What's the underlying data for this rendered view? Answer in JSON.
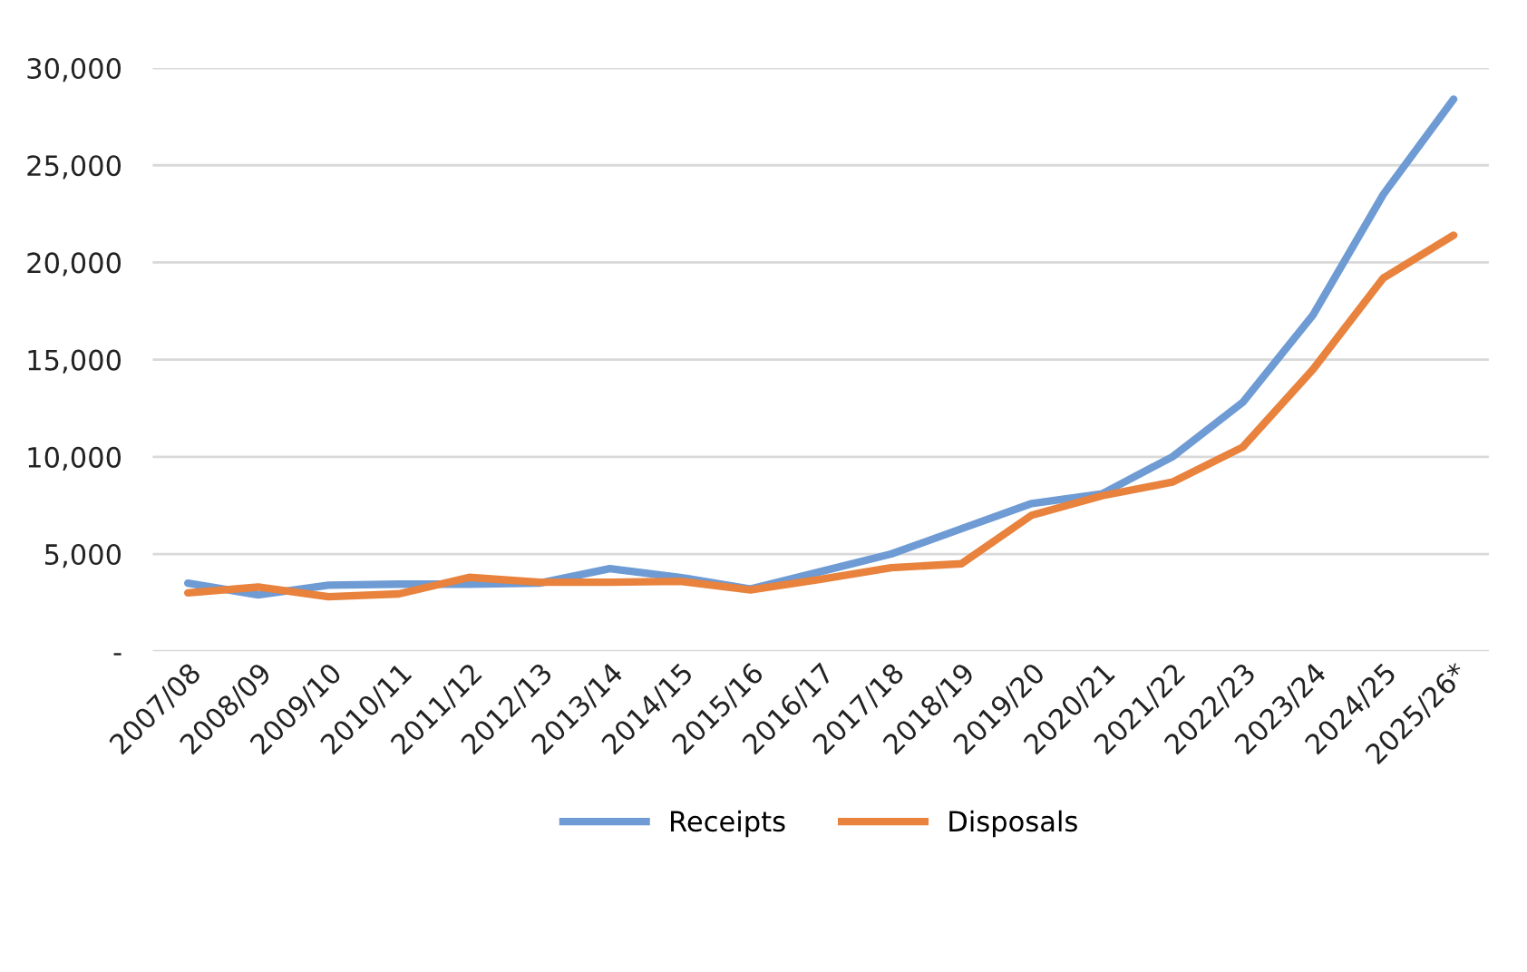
{
  "chart_data": {
    "type": "line",
    "categories": [
      "2007/08",
      "2008/09",
      "2009/10",
      "2010/11",
      "2011/12",
      "2012/13",
      "2013/14",
      "2014/15",
      "2015/16",
      "2016/17",
      "2017/18",
      "2018/19",
      "2019/20",
      "2020/21",
      "2021/22",
      "2022/23",
      "2023/24",
      "2024/25",
      "2025/26*"
    ],
    "series": [
      {
        "name": "Receipts",
        "color": "#6e9bd4",
        "values": [
          3500,
          2900,
          3400,
          3450,
          3450,
          3500,
          4250,
          3800,
          3200,
          4100,
          5000,
          6300,
          7600,
          8100,
          10000,
          12800,
          17300,
          23500,
          28400
        ]
      },
      {
        "name": "Disposals",
        "color": "#e8823d",
        "values": [
          3000,
          3300,
          2800,
          2950,
          3800,
          3550,
          3550,
          3600,
          3150,
          3700,
          4300,
          4500,
          7000,
          8000,
          8700,
          10500,
          14500,
          19200,
          21400
        ]
      }
    ],
    "ylim": [
      0,
      30000
    ],
    "yticks": [
      {
        "value": 0,
        "label": "-"
      },
      {
        "value": 5000,
        "label": "5,000"
      },
      {
        "value": 10000,
        "label": "10,000"
      },
      {
        "value": 15000,
        "label": "15,000"
      },
      {
        "value": 20000,
        "label": "20,000"
      },
      {
        "value": 25000,
        "label": "25,000"
      },
      {
        "value": 30000,
        "label": "30,000"
      }
    ],
    "grid": "y",
    "legend": "bottom",
    "line_style": "solid"
  }
}
